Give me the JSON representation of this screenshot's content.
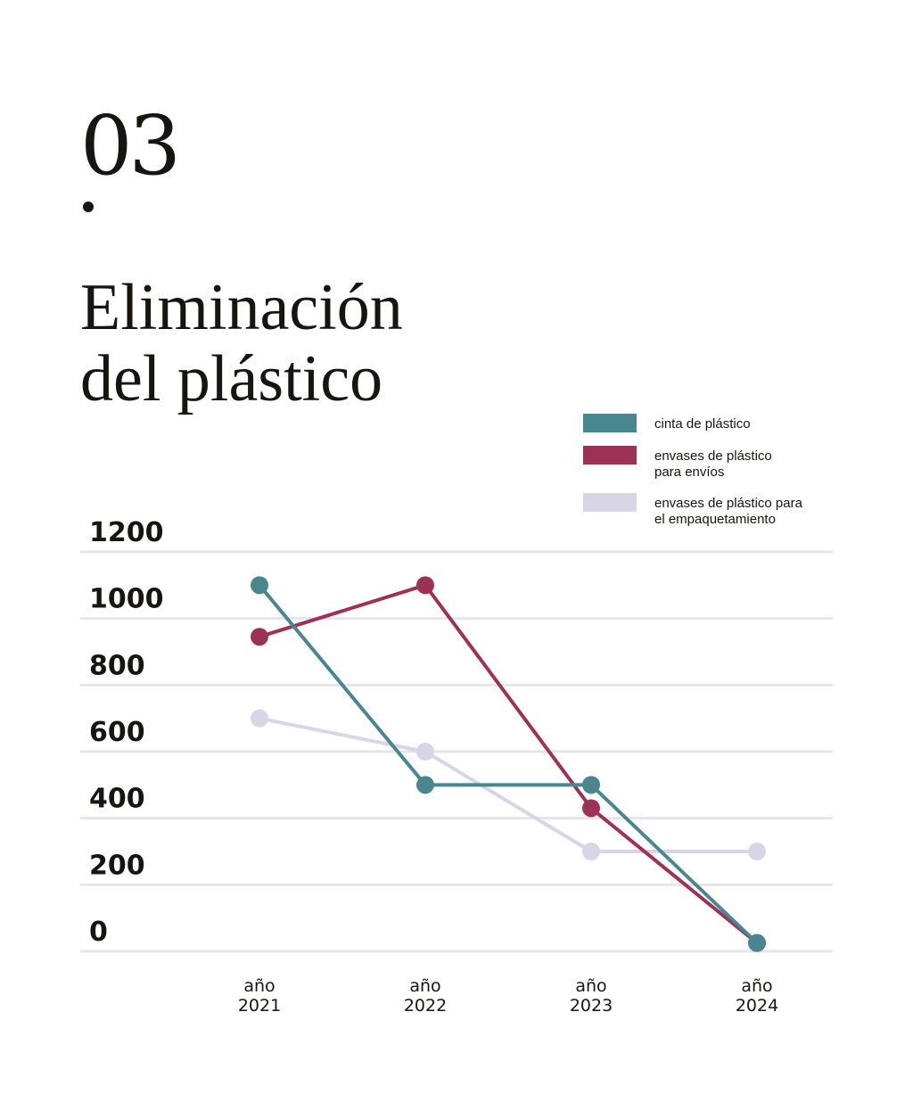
{
  "section_number": "03",
  "title_lines": [
    "Eliminación",
    "del plástico"
  ],
  "chart_data": {
    "type": "line",
    "title": "Eliminación del plástico",
    "x_lines": [
      [
        "año",
        "2021"
      ],
      [
        "año",
        "2022"
      ],
      [
        "año",
        "2023"
      ],
      [
        "año",
        "2024"
      ]
    ],
    "yticks": [
      0,
      200,
      400,
      600,
      800,
      1000,
      1200
    ],
    "ylim": [
      0,
      1200
    ],
    "grid": true,
    "legend_position": "top-right",
    "series": [
      {
        "name": "cinta de plástico",
        "color": "#4a8690",
        "values": [
          1100,
          500,
          500,
          25
        ]
      },
      {
        "name": "envases de plástico\npara envíos",
        "color": "#9c3357",
        "values": [
          945,
          1100,
          430,
          25
        ]
      },
      {
        "name": "envases de plástico para\nel empaquetamiento",
        "color": "#d8d6e6",
        "values": [
          700,
          600,
          300,
          300
        ]
      }
    ]
  }
}
